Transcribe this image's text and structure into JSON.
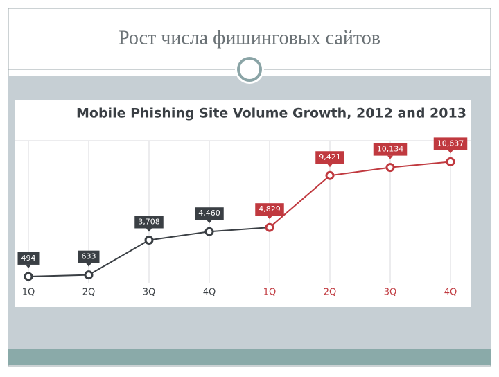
{
  "slide_title": "Рост числа фишинговых сайтов",
  "chart_data": {
    "type": "line",
    "title": "Mobile Phishing Site Volume Growth, 2012 and 2013",
    "categories": [
      "1Q",
      "2Q",
      "3Q",
      "4Q",
      "1Q",
      "2Q",
      "3Q",
      "4Q"
    ],
    "values": [
      494,
      633,
      3708,
      4460,
      4829,
      9421,
      10134,
      10637
    ],
    "value_labels": [
      "494",
      "633",
      "3,708",
      "4,460",
      "4,829",
      "9,421",
      "10,134",
      "10,637"
    ],
    "point_colors": [
      "#3a3f44",
      "#3a3f44",
      "#3a3f44",
      "#3a3f44",
      "#c0393f",
      "#c0393f",
      "#c0393f",
      "#c0393f"
    ],
    "ylim": [
      0,
      12500
    ],
    "grid": true
  }
}
